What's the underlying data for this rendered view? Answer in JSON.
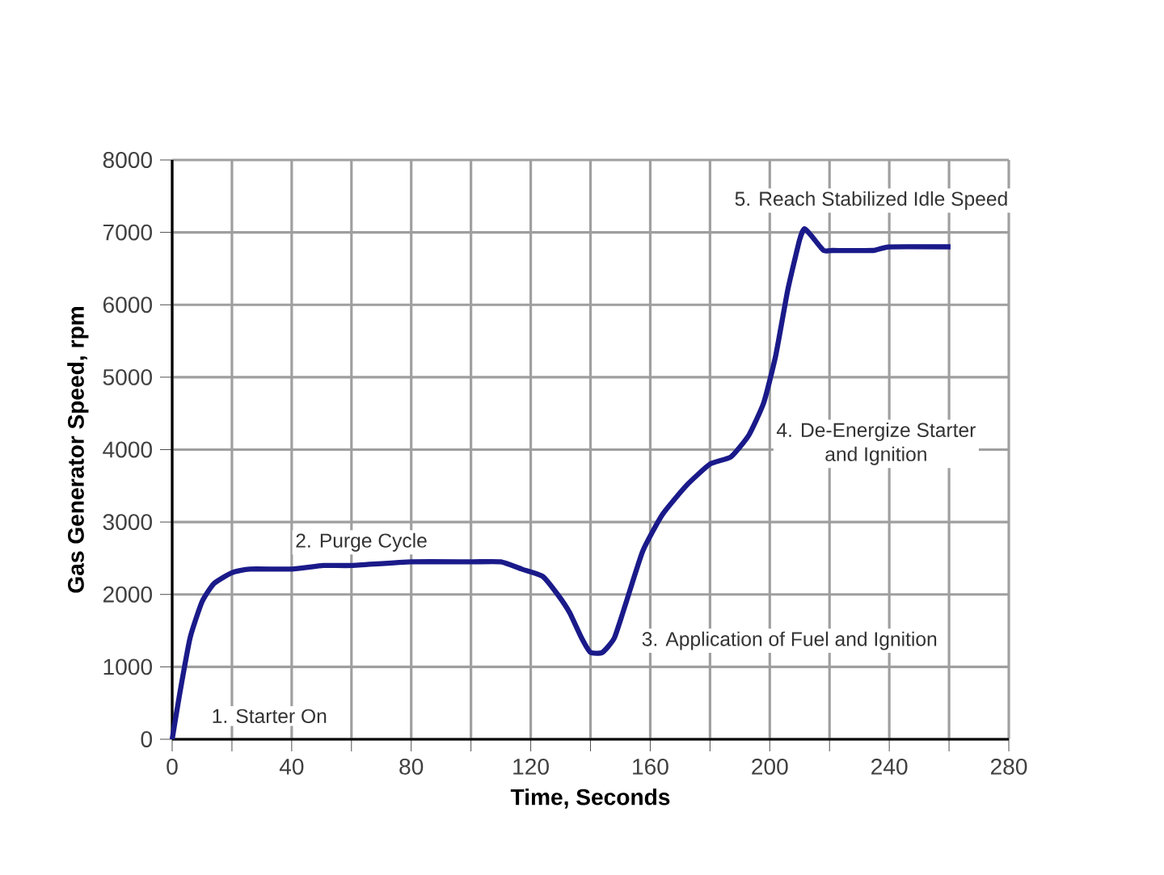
{
  "chart_data": {
    "type": "line",
    "xlabel": "Time, Seconds",
    "ylabel": "Gas Generator Speed, rpm",
    "xlim": [
      0,
      280
    ],
    "ylim": [
      0,
      8000
    ],
    "xticks": [
      0,
      {
        "value": 20,
        "label": null
      },
      40,
      {
        "value": 60,
        "label": null
      },
      80,
      {
        "value": 100,
        "label": null
      },
      120,
      {
        "value": 140,
        "label": null
      },
      160,
      {
        "value": 180,
        "label": null
      },
      200,
      {
        "value": 220,
        "label": null
      },
      240,
      {
        "value": 260,
        "label": null
      },
      280
    ],
    "yticks": [
      0,
      1000,
      2000,
      3000,
      4000,
      5000,
      6000,
      7000,
      8000
    ],
    "grid": true,
    "marker": "none",
    "line_style": "solid",
    "series": [
      {
        "color": "#1a1a8a",
        "x": [
          0,
          2.4,
          6,
          10,
          14,
          20,
          26,
          40,
          50.6,
          60,
          80,
          100,
          110,
          117,
          124,
          129,
          133,
          137,
          140,
          144,
          148,
          152,
          157.5,
          164,
          172,
          180,
          187,
          193,
          198,
          202,
          206,
          210,
          211.6,
          214,
          218,
          221,
          234.6,
          240,
          260.5
        ],
        "values": [
          0,
          600,
          1400,
          1900,
          2150,
          2300,
          2350,
          2350,
          2400,
          2400,
          2450,
          2450,
          2450,
          2350,
          2250,
          2000,
          1750,
          1400,
          1200,
          1200,
          1400,
          1900,
          2600,
          3100,
          3500,
          3800,
          3900,
          4200,
          4650,
          5300,
          6200,
          6900,
          7050,
          6950,
          6750,
          6750,
          6750,
          6800,
          6800
        ]
      }
    ],
    "annotations": [
      "1. Starter On",
      "2. Purge Cycle",
      "3. Application of Fuel and Ignition",
      "4. De-Energize Starter and Ignition",
      "5. Reach Stabilized Idle Speed"
    ]
  }
}
